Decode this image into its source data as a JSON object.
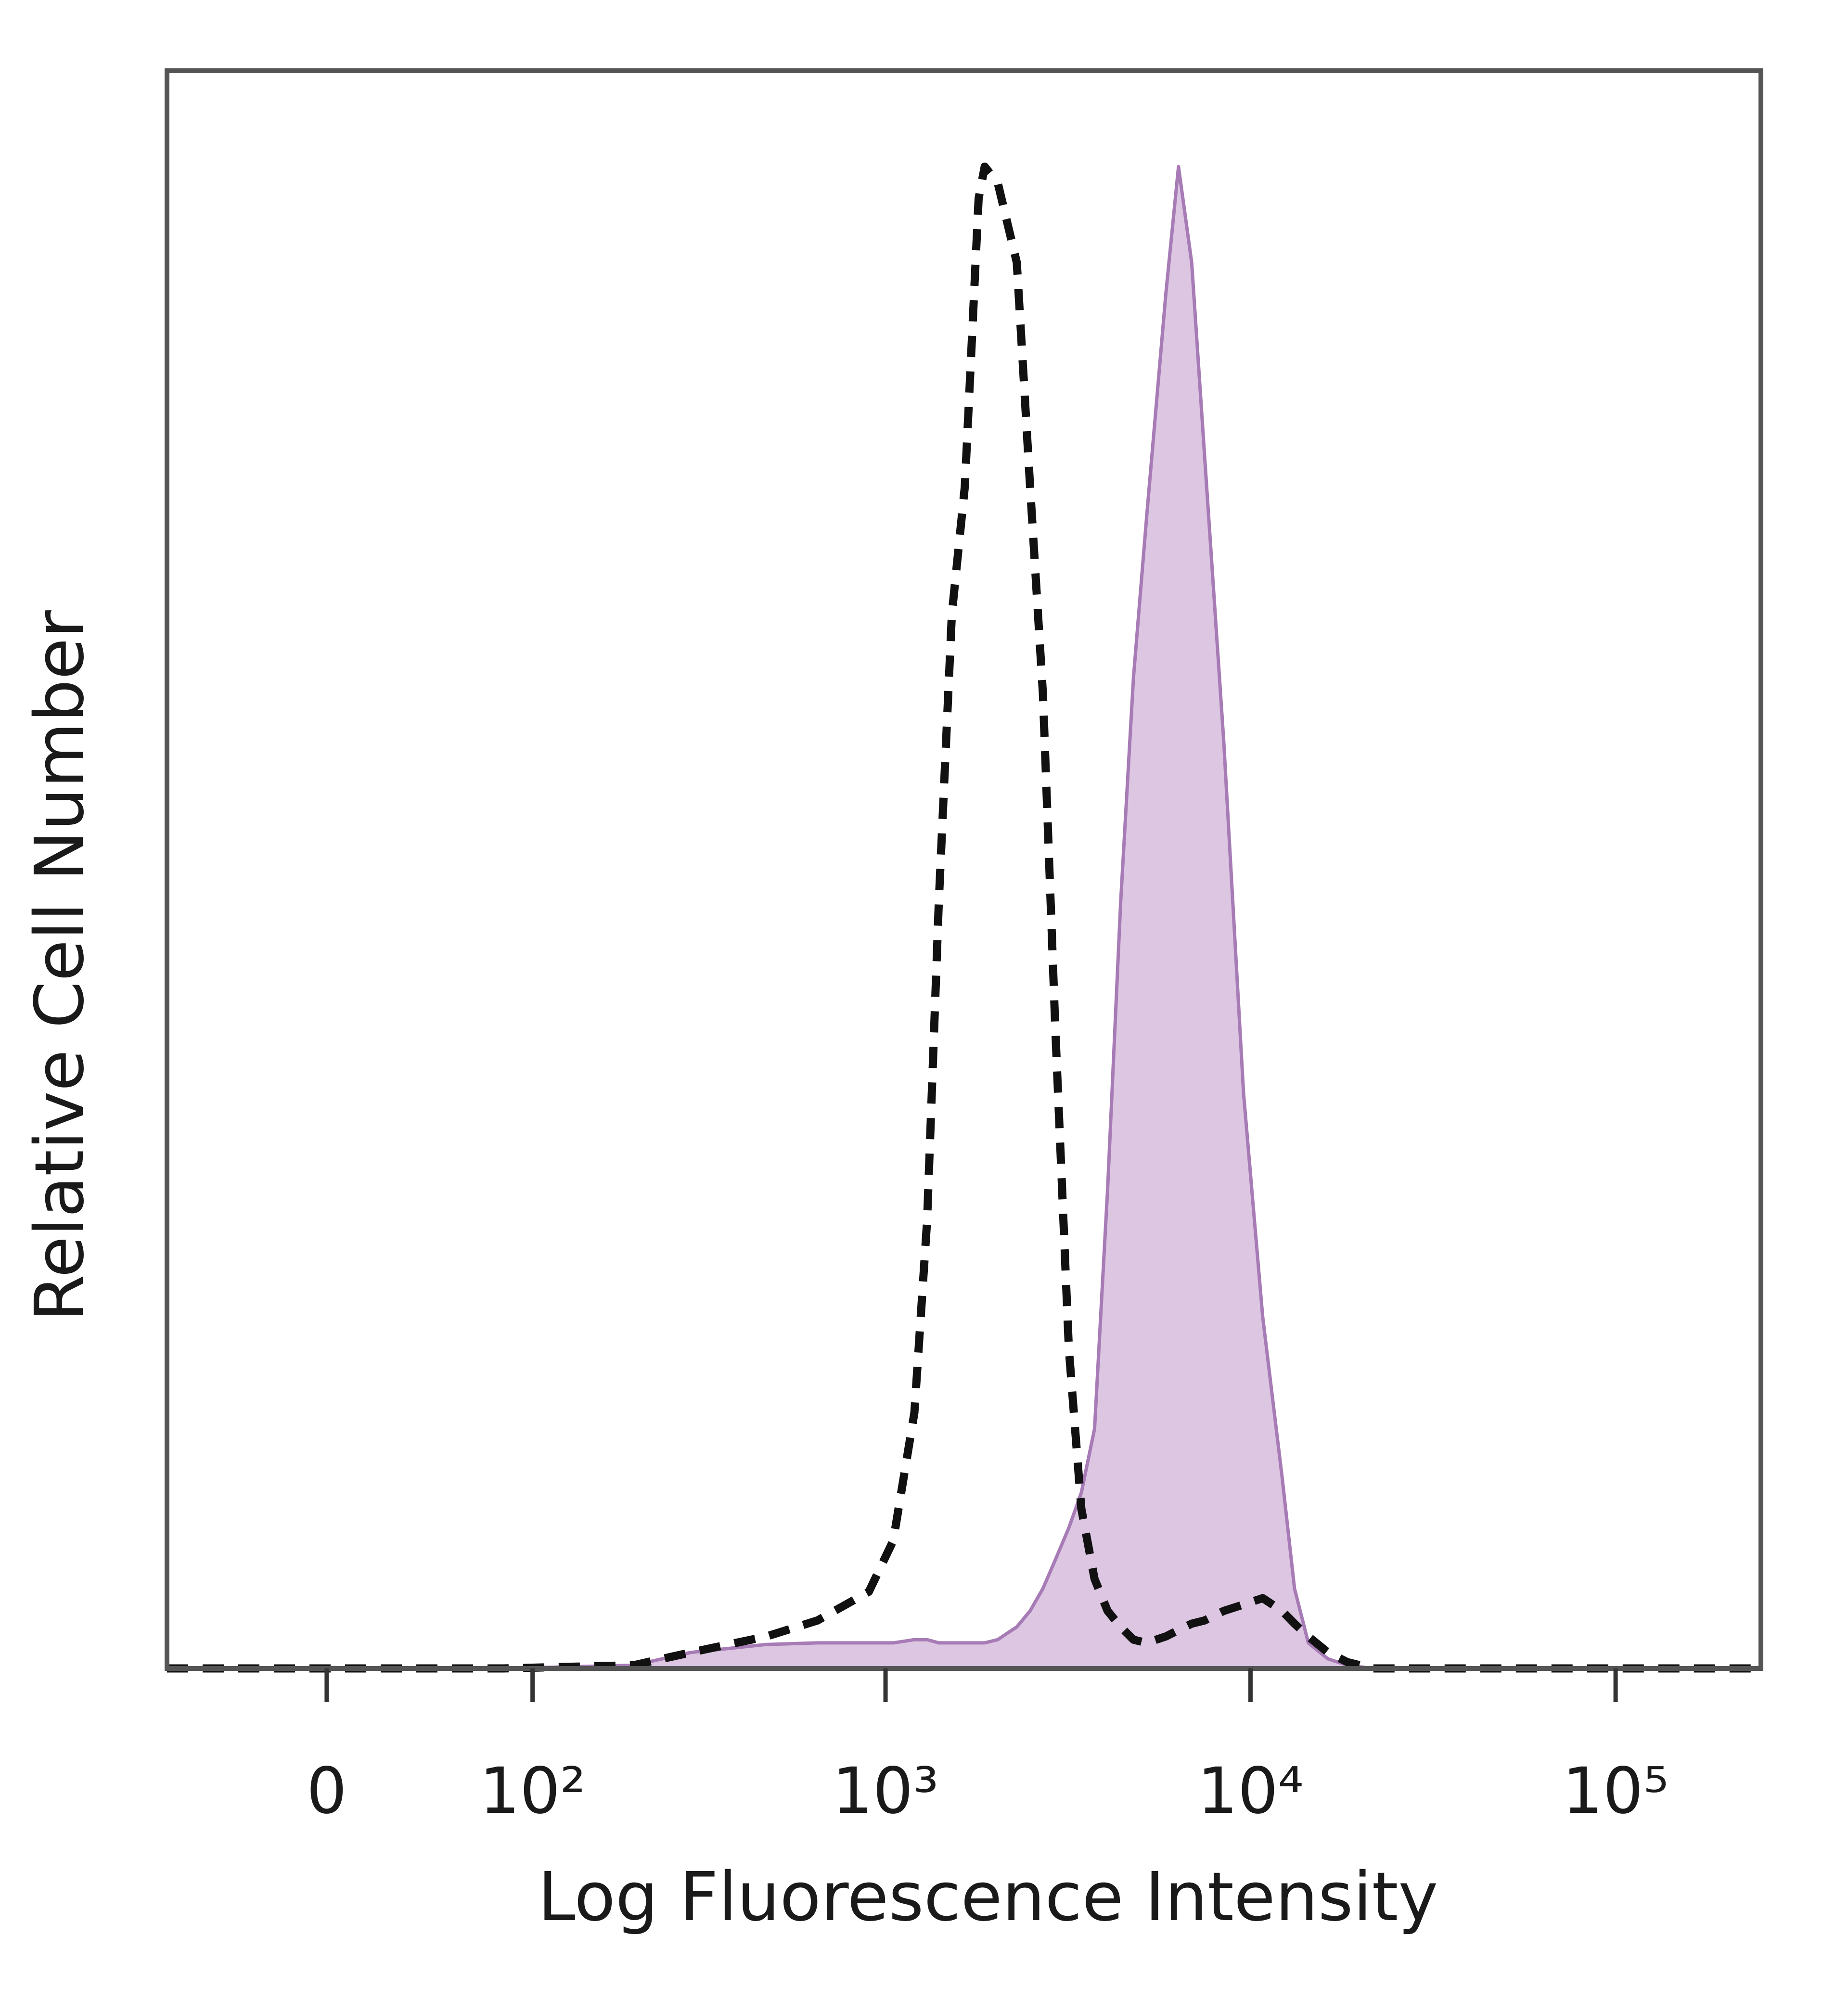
{
  "chart_data": {
    "type": "histogram-overlay",
    "xlabel": "Log Fluorescence Intensity",
    "ylabel": "Relative Cell Number",
    "xscale": "biexponential",
    "xlim": [
      -70,
      250000
    ],
    "xticks": [
      0,
      {
        "value": 100,
        "label": "10²"
      },
      {
        "value": 1000,
        "label": "10³"
      },
      {
        "value": 10000,
        "label": "10⁴"
      },
      {
        "value": 100000,
        "label": "10⁵"
      }
    ],
    "ylim": [
      0,
      100
    ],
    "x": [
      -70,
      0,
      80,
      200,
      290,
      470,
      650,
      900,
      1050,
      1200,
      1300,
      1400,
      1520,
      1650,
      1800,
      1870,
      2030,
      2290,
      2490,
      2700,
      2920,
      3180,
      3440,
      3740,
      4060,
      4410,
      4780,
      5190,
      5860,
      6350,
      6900,
      7480,
      8450,
      9570,
      10800,
      12200,
      13200,
      14400,
      16300,
      18400,
      21600,
      250000
    ],
    "series": [
      {
        "style": "filled",
        "color": "#a77bb5",
        "fill": "#dcc6e2",
        "values": [
          0,
          0,
          0,
          0.2,
          1,
          1.5,
          1.6,
          1.6,
          1.6,
          1.8,
          1.8,
          1.6,
          1.6,
          1.6,
          1.6,
          1.6,
          1.8,
          2.6,
          3.6,
          5,
          6.8,
          8.8,
          11,
          15,
          30,
          48,
          62,
          72,
          86,
          94,
          88,
          76,
          58,
          36,
          22,
          12,
          5,
          1.6,
          0.6,
          0.2,
          0,
          0
        ]
      },
      {
        "style": "dashed",
        "color": "#111111",
        "values": [
          0,
          0,
          0,
          0.2,
          1,
          2,
          3,
          4.8,
          8,
          16,
          28,
          48,
          66,
          74,
          92,
          94,
          93,
          88,
          74,
          61,
          40,
          20,
          10,
          5.6,
          3.6,
          2.6,
          1.8,
          1.6,
          2,
          2.4,
          2.8,
          3,
          3.6,
          4,
          4.4,
          3.6,
          2.8,
          2,
          1,
          0.4,
          0,
          0
        ]
      }
    ]
  }
}
